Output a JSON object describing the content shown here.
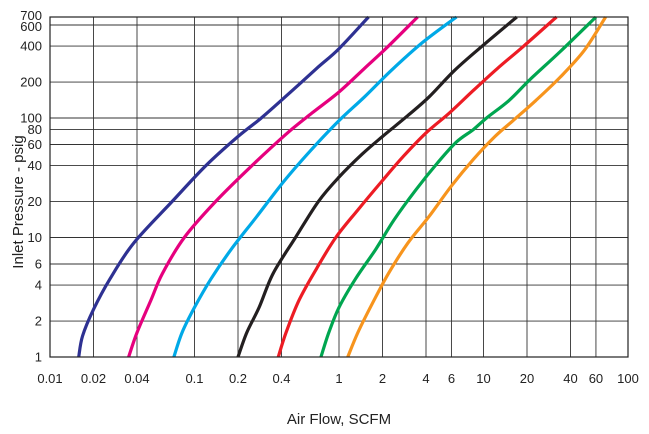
{
  "chart_data": {
    "type": "line",
    "title": "",
    "xlabel": "Air Flow, SCFM",
    "ylabel": "Inlet Pressure - psig",
    "x_scale": "log",
    "y_scale": "log",
    "xlim": [
      0.01,
      100
    ],
    "ylim": [
      1,
      700
    ],
    "x_ticks": [
      0.01,
      0.02,
      0.04,
      0.1,
      0.2,
      0.4,
      1,
      2,
      4,
      6,
      10,
      20,
      40,
      60,
      100
    ],
    "x_tick_labels": [
      "0.01",
      "0.02",
      "0.04",
      "0.1",
      "0.2",
      "0.4",
      "1",
      "2",
      "4",
      "6",
      "10",
      "20",
      "40",
      "60",
      "100"
    ],
    "y_ticks": [
      1,
      2,
      4,
      6,
      10,
      20,
      40,
      60,
      80,
      100,
      200,
      400,
      600,
      700
    ],
    "y_tick_labels": [
      "1",
      "2",
      "4",
      "6",
      "10",
      "20",
      "40",
      "60",
      "80",
      "100",
      "200",
      "400",
      "600",
      "700"
    ],
    "x_grid": [
      0.01,
      0.02,
      0.04,
      0.1,
      0.2,
      0.4,
      1,
      2,
      4,
      6,
      10,
      20,
      40,
      60,
      100
    ],
    "y_grid": [
      1,
      2,
      4,
      6,
      10,
      20,
      40,
      60,
      80,
      100,
      200,
      400,
      600,
      700
    ],
    "grid": true,
    "legend": "none",
    "series": [
      {
        "color": "#2e3192",
        "points": [
          [
            0.0158,
            1
          ],
          [
            0.0168,
            1.5
          ],
          [
            0.02,
            2.5
          ],
          [
            0.026,
            4.5
          ],
          [
            0.038,
            9
          ],
          [
            0.07,
            20
          ],
          [
            0.12,
            40
          ],
          [
            0.2,
            70
          ],
          [
            0.29,
            100
          ],
          [
            0.45,
            160
          ],
          [
            0.7,
            260
          ],
          [
            1.0,
            380
          ],
          [
            1.6,
            700
          ]
        ]
      },
      {
        "color": "#e6007e",
        "points": [
          [
            0.035,
            1
          ],
          [
            0.04,
            1.6
          ],
          [
            0.05,
            3
          ],
          [
            0.06,
            5
          ],
          [
            0.085,
            10
          ],
          [
            0.14,
            20
          ],
          [
            0.25,
            40
          ],
          [
            0.44,
            75
          ],
          [
            0.65,
            110
          ],
          [
            1.0,
            165
          ],
          [
            1.5,
            260
          ],
          [
            2.2,
            400
          ],
          [
            3.5,
            700
          ]
        ]
      },
      {
        "color": "#00a9e7",
        "points": [
          [
            0.072,
            1
          ],
          [
            0.082,
            1.6
          ],
          [
            0.1,
            2.6
          ],
          [
            0.13,
            4.5
          ],
          [
            0.18,
            8
          ],
          [
            0.27,
            15
          ],
          [
            0.42,
            30
          ],
          [
            0.65,
            55
          ],
          [
            1.0,
            95
          ],
          [
            1.5,
            150
          ],
          [
            2.3,
            250
          ],
          [
            3.8,
            430
          ],
          [
            6.5,
            700
          ]
        ]
      },
      {
        "color": "#231f20",
        "points": [
          [
            0.2,
            1
          ],
          [
            0.23,
            1.6
          ],
          [
            0.28,
            2.6
          ],
          [
            0.35,
            5
          ],
          [
            0.5,
            10
          ],
          [
            0.72,
            20
          ],
          [
            1.0,
            32
          ],
          [
            1.45,
            50
          ],
          [
            2.0,
            70
          ],
          [
            3.0,
            105
          ],
          [
            4.2,
            150
          ],
          [
            6.3,
            250
          ],
          [
            9.8,
            400
          ],
          [
            17,
            700
          ]
        ]
      },
      {
        "color": "#ed1c24",
        "points": [
          [
            0.38,
            1
          ],
          [
            0.43,
            1.6
          ],
          [
            0.53,
            3
          ],
          [
            0.7,
            5.5
          ],
          [
            0.95,
            10
          ],
          [
            1.35,
            17
          ],
          [
            2.0,
            30
          ],
          [
            2.8,
            48
          ],
          [
            4.0,
            75
          ],
          [
            5.8,
            110
          ],
          [
            8.5,
            170
          ],
          [
            12.5,
            260
          ],
          [
            19,
            400
          ],
          [
            32,
            700
          ]
        ]
      },
      {
        "color": "#00a650",
        "points": [
          [
            0.75,
            1
          ],
          [
            0.85,
            1.6
          ],
          [
            1.0,
            2.6
          ],
          [
            1.3,
            4.5
          ],
          [
            1.8,
            8
          ],
          [
            2.4,
            14
          ],
          [
            3.4,
            25
          ],
          [
            4.8,
            42
          ],
          [
            6.5,
            63
          ],
          [
            8.5,
            80
          ],
          [
            10.5,
            100
          ],
          [
            15,
            140
          ],
          [
            21,
            210
          ],
          [
            34,
            360
          ],
          [
            60,
            700
          ]
        ]
      },
      {
        "color": "#f7941d",
        "points": [
          [
            1.15,
            1
          ],
          [
            1.35,
            1.6
          ],
          [
            1.7,
            2.8
          ],
          [
            2.2,
            5
          ],
          [
            3.0,
            9
          ],
          [
            4.2,
            15
          ],
          [
            6.0,
            27
          ],
          [
            8.5,
            45
          ],
          [
            12,
            70
          ],
          [
            16,
            95
          ],
          [
            23,
            140
          ],
          [
            34,
            220
          ],
          [
            50,
            370
          ],
          [
            70,
            700
          ]
        ]
      }
    ]
  }
}
